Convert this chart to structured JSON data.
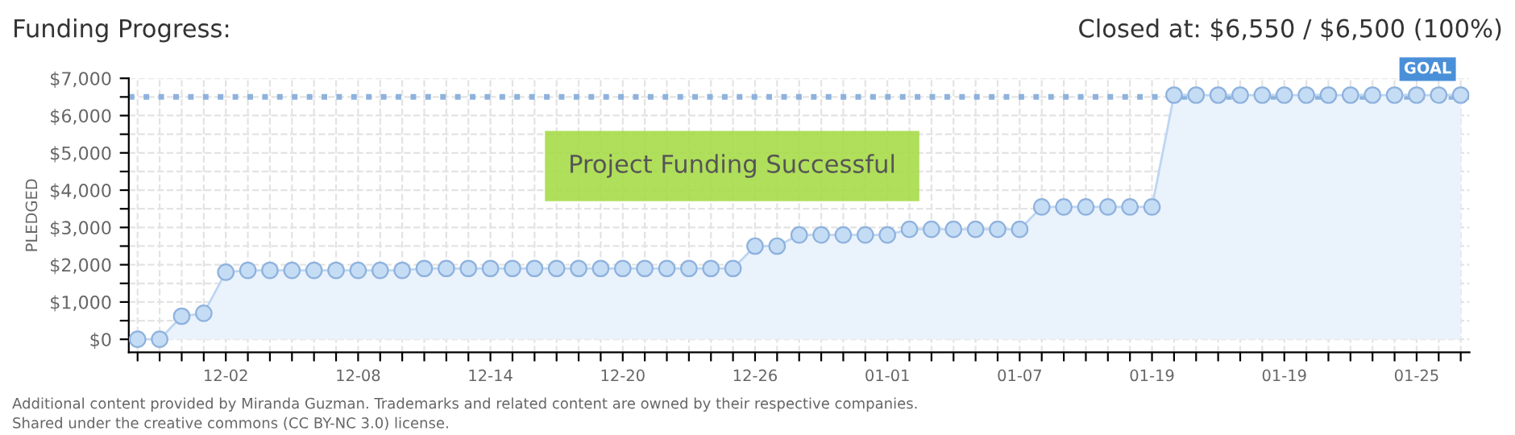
{
  "chart_data": {
    "type": "area",
    "title": "Funding Progress:",
    "subtitle": "Closed at: $6,550 / $6,500 (100%)",
    "ylabel": "PLEDGED",
    "categories": [
      null,
      null,
      null,
      null,
      "12-02",
      null,
      null,
      null,
      null,
      null,
      "12-08",
      null,
      null,
      null,
      null,
      null,
      "12-14",
      null,
      null,
      null,
      null,
      null,
      "12-20",
      null,
      null,
      null,
      null,
      null,
      "12-26",
      null,
      null,
      null,
      null,
      null,
      "01-01",
      null,
      null,
      null,
      null,
      null,
      "01-07",
      null,
      null,
      null,
      null,
      null,
      "01-19",
      null,
      null,
      null,
      null,
      null,
      "01-19",
      null,
      null,
      null,
      null,
      null,
      "01-25",
      null,
      null
    ],
    "series": [
      {
        "color": "#c5dcf5",
        "values": [
          0,
          0,
          620,
          700,
          1800,
          1850,
          1850,
          1850,
          1850,
          1850,
          1850,
          1850,
          1850,
          1900,
          1900,
          1900,
          1900,
          1900,
          1900,
          1900,
          1900,
          1900,
          1900,
          1900,
          1900,
          1900,
          1900,
          1900,
          2500,
          2500,
          2800,
          2800,
          2800,
          2800,
          2800,
          2950,
          2950,
          2950,
          2950,
          2950,
          2950,
          3550,
          3550,
          3550,
          3550,
          3550,
          3550,
          6550,
          6550,
          6550,
          6550,
          6550,
          6550,
          6550,
          6550,
          6550,
          6550,
          6550,
          6550,
          6550,
          6550
        ]
      }
    ],
    "ylim": [
      -350,
      7000
    ],
    "yticks": [
      {
        "value": 0,
        "label": "$0"
      },
      {
        "value": 500,
        "label": null
      },
      {
        "value": 1000,
        "label": "$1,000"
      },
      {
        "value": 1500,
        "label": null
      },
      {
        "value": 2000,
        "label": "$2,000"
      },
      {
        "value": 2500,
        "label": null
      },
      {
        "value": 3000,
        "label": "$3,000"
      },
      {
        "value": 3500,
        "label": null
      },
      {
        "value": 4000,
        "label": "$4,000"
      },
      {
        "value": 4500,
        "label": null
      },
      {
        "value": 5000,
        "label": "$5,000"
      },
      {
        "value": 5500,
        "label": null
      },
      {
        "value": 6000,
        "label": "$6,000"
      },
      {
        "value": 6500,
        "label": null
      },
      {
        "value": 7000,
        "label": "$7,000"
      }
    ],
    "ref_lines": [
      {
        "axis": "y",
        "value": 6500,
        "label": "GOAL",
        "color": "#8eb2dd",
        "line_style": "dotted"
      }
    ],
    "grid": true,
    "marker": "circle",
    "legend": false,
    "annotations": [
      "Project Funding Successful",
      "Additional content provided by Miranda Guzman. Trademarks and related content are owned by their respective companies.",
      "Shared under the creative commons (CC BY-NC 3.0) license."
    ]
  }
}
